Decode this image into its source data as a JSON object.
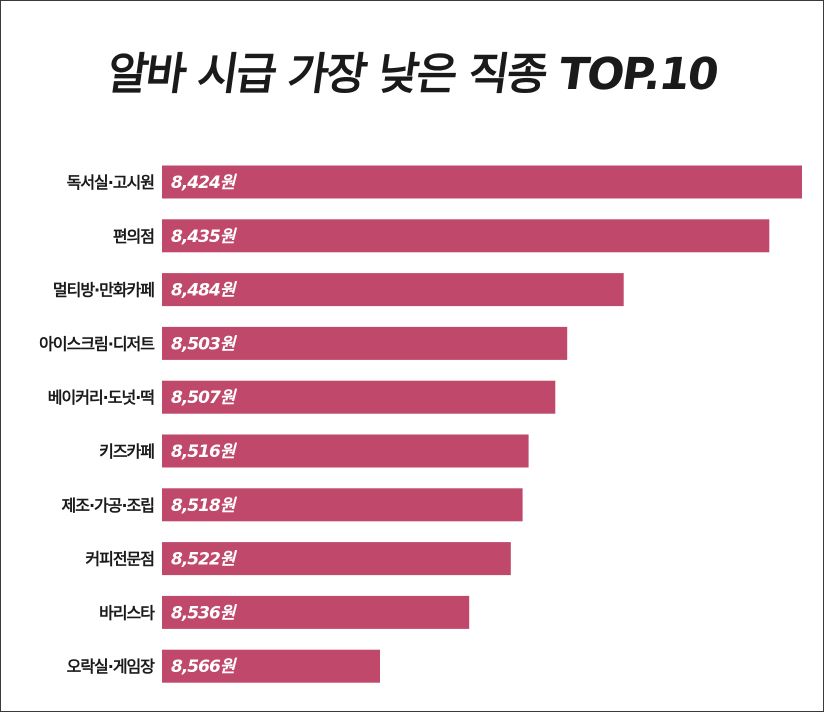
{
  "chart_data": {
    "type": "bar",
    "orientation": "horizontal",
    "title": "알바 시급 가장 낮은 직종 TOP.10",
    "categories": [
      "독서실·고시원",
      "편의점",
      "멀티방·만화카페",
      "아이스크림·디저트",
      "베이커리·도넛·떡",
      "키즈카페",
      "제조·가공·조립",
      "커피전문점",
      "바리스타",
      "오락실·게임장"
    ],
    "values": [
      8424,
      8435,
      8484,
      8503,
      8507,
      8516,
      8518,
      8522,
      8536,
      8566
    ],
    "value_labels": [
      "8,424원",
      "8,435원",
      "8,484원",
      "8,503원",
      "8,507원",
      "8,516원",
      "8,518원",
      "8,522원",
      "8,536원",
      "8,566원"
    ],
    "bar_color": "#c0486b",
    "grid": false,
    "legend": "none"
  }
}
